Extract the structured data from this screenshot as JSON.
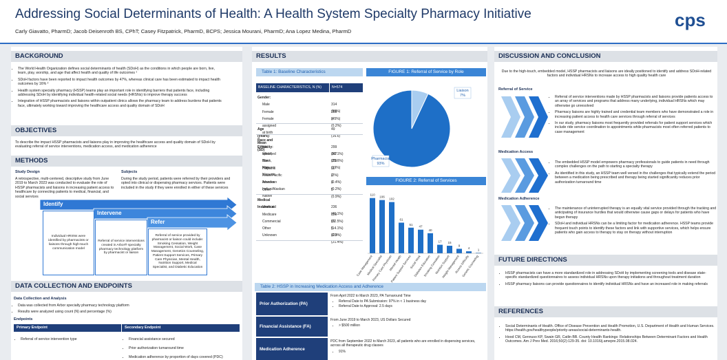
{
  "header": {
    "title": "Addressing Social Determinants of Health: A Health System Specialty Pharmacy Initiative",
    "authors": "Carly Giavatto, PharmD; Jacob Deisenroth BS, CPhT; Casey Fitzpatrick, PharmD, BCPS; Jessica Mourani, PharmD; Ana Lopez Medina, PharmD",
    "logo": "cps"
  },
  "background": {
    "heading": "BACKGROUND",
    "bullets": [
      "The World Health Organization defines social determinants of health (SDoH) as the conditions in which people are born, live, learn, play, worship, and age that affect health and quality of life outcomes ¹",
      "SDoH factors have been reported to impact health outcomes by 47%, whereas clinical care has been estimated to impact health outcomes by 16% ²",
      "Health system specialty pharmacy (HSSP) teams play an important role in identifying barriers that patients face, including addressing SDoH by identifying individual health-related social needs (HRSNs) to improve therapy success",
      "Integration of HSSP pharmacists and liaisons within outpatient clinics allows the pharmacy team to address burdens that patients face, ultimately working toward improving the healthcare access and quality domain of SDoH"
    ]
  },
  "objectives": {
    "heading": "OBJECTIVES",
    "text": "To describe the impact HSSP pharmacists and liaisons play in improving the healthcare access and quality domain of SDoH by evaluating referral of service interventions, medication access, and medication adherence"
  },
  "methods": {
    "heading": "METHODS",
    "study_design": {
      "heading": "Study Design",
      "text": "A retrospective, multi-centered, descriptive study from June 2019 to March 2023 was conducted to evaluate the role of HSSP pharmacists and liaisons in increasing patient access to healthcare by connecting patients to medical, financial, and social services"
    },
    "subjects": {
      "heading": "Subjects",
      "text": "During the study period, patients were referred by their providers and opted into clinical or dispensing pharmacy services. Patients were included in the study if they were enrolled in either of these services"
    },
    "steps": [
      {
        "label": "Identify",
        "text": "Individual HRSNs were identified by pharmacists or liaisons through high-touch communication model"
      },
      {
        "label": "Intervene",
        "text": "Referral of service interventions created in Arbor® specialty pharmacy technology platform by pharmacist or liaison"
      },
      {
        "label": "Refer",
        "text": "Referral of service provided by pharmacist or liaison could include: Smoking Cessation, Weight Management, Social Work, Case Management, Genetics Counseling, Patient Support Services, Primary Care Physician, Mental Health, Nutrition Support, Medical Specialist, and Diabetic Education"
      }
    ]
  },
  "data_collection": {
    "heading": "DATA COLLECTION AND ENDPOINTS",
    "sub_heading": "Data Collection and Analysis",
    "bullets": [
      "Data was collected from Arbor specialty pharmacy technology platform",
      "Results were analyzed using count (N) and percentage (%)"
    ],
    "endpoints_heading": "Endpoints",
    "table": {
      "headers": [
        "Primary Endpoint",
        "Secondary Endpoint"
      ],
      "primary": [
        "Referral of service intervention type"
      ],
      "secondary": [
        "Financial assistance secured",
        "Prior authorization turnaround time",
        "Medication adherence by proportion of days covered (PDC)"
      ]
    }
  },
  "results": {
    "heading": "RESULTS",
    "table1": {
      "caption": "Table 1: Baseline Characteristics",
      "header": [
        "BASELINE CHARACTERISTICS, N (%)",
        "N=574"
      ],
      "groups": [
        {
          "title": "Gender:",
          "rows": [
            [
              "Male",
              "314 (55%)"
            ],
            [
              "Female",
              "259 (45%)"
            ],
            [
              "Female assigned at birth",
              "1 (0.2%)"
            ]
          ]
        },
        {
          "title": "Age (years): Mean (SD)",
          "value": "49 (16.6)"
        },
        {
          "title": "Race and Ethnicity:",
          "rows": [
            [
              "Not specified",
              "299 (52.1%)"
            ],
            [
              "White, Non-Hispanic",
              "147 (25.6%)"
            ],
            [
              "Black, Non-Hispanic",
              "109 (19%)"
            ],
            [
              "Hispanic",
              "11 (2%)"
            ],
            [
              "Asian/Pacific Islander",
              "2 (0.4%)"
            ],
            [
              "American Indian/Alaskan Native",
              "1 (0.2%)"
            ],
            [
              "Other",
              "5 (0.9%)"
            ]
          ]
        },
        {
          "title": "Medical Insurance:",
          "rows": [
            [
              "Medicaid",
              "236 (41.1%)"
            ],
            [
              "Medicare",
              "129 (22.5%)"
            ],
            [
              "Commercial",
              "81 (14.1%)"
            ],
            [
              "Other",
              "5 (0.9%)"
            ],
            [
              "Unknown",
              "123 (21.4%)"
            ]
          ]
        }
      ]
    },
    "figure1": {
      "type": "pie",
      "title": "FIGURE 1: Referral of Service by Role",
      "categories": [
        "Liaison",
        "Pharmacist"
      ],
      "values": [
        7,
        93
      ],
      "value_labels": [
        "7%",
        "93%"
      ],
      "colors": [
        "#a9cdf0",
        "#1e6fc7"
      ]
    },
    "figure2": {
      "type": "bar",
      "title": "FIGURE 2: Referral of Services",
      "color": "#1e6fc7",
      "categories": [
        "Case Management",
        "Medical Specialist",
        "Primary Care Physician",
        "Mental Health",
        "Patient Support Services",
        "Social Work",
        "Diabetes Education",
        "Smoking Cessation",
        "Nutrition Support",
        "Weight Management",
        "Access Difficulty",
        "Genetic Counseling"
      ],
      "values": [
        110,
        106,
        102,
        61,
        51,
        47,
        40,
        17,
        15,
        9,
        4,
        1
      ]
    },
    "table2": {
      "caption": "Table 2: HSSP in Increasing Medication Access and Adherence",
      "rows": [
        {
          "label": "Prior Authorization (PA)",
          "intro": "From April 2022 to March 2023, PA Turnaround Time",
          "bullets": [
            "Referral Date to PA Submission: 97% in < 1 business day",
            "Referral Date to Approval: 2.5 days"
          ]
        },
        {
          "label": "Financial Assistance (FA)",
          "intro": "From June 2019 to March 2023, US Dollars Secured",
          "bullets": [
            "> $500 million"
          ]
        },
        {
          "label": "Medication Adherence",
          "intro": "PDC from September 2022 to March 2023, all patients who are enrolled in dispensing services, across all therapeutic drug classes",
          "bullets": [
            "91%"
          ]
        }
      ]
    }
  },
  "discussion": {
    "heading": "DISCUSSION AND CONCLUSION",
    "intro": "Due to the high-touch, embedded model, HSSP pharmacists and liaisons are ideally positioned to identify and address SDoH-related factors and individual HRSNs to increase access to high quality health care",
    "sections": [
      {
        "heading": "Referral of Service",
        "bullets": [
          "Referral of service interventions made by HSSP pharmacists and liaisons provide patients access to an array of services and programs that address many underlying, individual HRSNs which may otherwise go unresolved",
          "Pharmacy liaisons are highly trained and credential team members who have demonstrated a role in increasing patient access to health care services through referral of services",
          "In our study, pharmacy liaisons most frequently provided referrals for patient support services which include ride service coordination to appointments while pharmacists most often referred patients to case management"
        ]
      },
      {
        "heading": "Medication Access",
        "bullets": [
          "The embedded HSSP model empowers pharmacy professionals to guide patients in need through complex challenges on the path to starting a specialty therapy",
          "As identified in this study, an HSSP team well versed in the challenges that typically extend the period between a medication being prescribed and therapy being started significantly reduces prior authorization turnaround time"
        ]
      },
      {
        "heading": "Medication Adherence",
        "bullets": [
          "The maintenance of uninterrupted therapy is an equally vital service provided through the tracking and anticipating of insurance hurdles that would otherwise cause gaps or delays for patients who have begun therapy",
          "SDoH and individual HRSNs can be a limiting factor for medication adherence. HSSP teams provide frequent touch points to identify these factors and link with supportive services, which helps ensure patients who gain access to therapy to stay on therapy without interruption"
        ]
      }
    ]
  },
  "future": {
    "heading": "FUTURE DIRECTIONS",
    "bullets": [
      "HSSP pharmacists can have a more standardized role in addressing SDoH by implementing screening tools and disease state-specific standardized questionnaires to assess individual HRSNs upon therapy initiations and throughout treatment duration",
      "HSSP pharmacy liaisons can provide questionnaires to identify individual HRSNs and have an increased role in making referrals"
    ]
  },
  "references": {
    "heading": "REFERENCES",
    "items": [
      "Social Determinants of Health. Office of Disease Prevention and Health Promotion, U.S. Department of Health and Human Services. https://health.gov/healthypeople/priority-areas/social-determinants-health.",
      "Hood CM, Gennuso KP, Swain GR, Catlin BB. County Health Rankings: Relationships Between Determinant Factors and Health Outcomes. Am J Prev Med. 2016;50(2):129-35. doi: 10.1016/j.amepre.2015.08.024."
    ]
  }
}
